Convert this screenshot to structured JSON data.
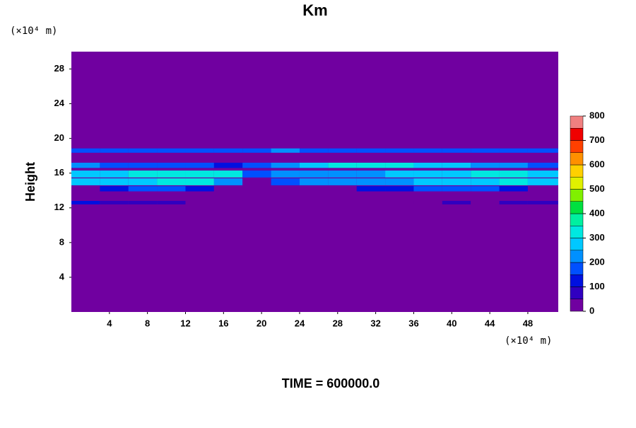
{
  "chart_data": {
    "type": "heatmap",
    "title": "Km",
    "x_unit": "(×10⁴ m)",
    "y_unit": "(×10⁴ m)",
    "y_label": "Height",
    "footer": "TIME = 600000.0",
    "xlim": [
      0,
      51.2
    ],
    "ylim": [
      0,
      30
    ],
    "xticks": [
      4,
      8,
      12,
      16,
      20,
      24,
      28,
      32,
      36,
      40,
      44,
      48
    ],
    "yticks": [
      4,
      8,
      12,
      16,
      20,
      24,
      28
    ],
    "background_value": 0,
    "x_edges": [
      0,
      3,
      6,
      9,
      12,
      15,
      18,
      21,
      24,
      27,
      30,
      33,
      36,
      39,
      42,
      45,
      48,
      51.2
    ],
    "rows": [
      {
        "y": [
          12.4,
          12.8
        ],
        "values": [
          100,
          80,
          80,
          60,
          0,
          0,
          0,
          0,
          0,
          0,
          0,
          0,
          0,
          60,
          0,
          50,
          80
        ]
      },
      {
        "y": [
          13.9,
          14.5
        ],
        "values": [
          0,
          120,
          150,
          150,
          120,
          0,
          0,
          0,
          0,
          0,
          100,
          120,
          150,
          150,
          150,
          100,
          0
        ]
      },
      {
        "y": [
          14.6,
          15.4
        ],
        "values": [
          250,
          260,
          280,
          300,
          320,
          200,
          0,
          150,
          200,
          220,
          200,
          220,
          260,
          280,
          280,
          300,
          250
        ]
      },
      {
        "y": [
          15.5,
          16.3
        ],
        "values": [
          280,
          260,
          300,
          320,
          320,
          300,
          150,
          200,
          220,
          220,
          230,
          250,
          280,
          280,
          300,
          300,
          260
        ]
      },
      {
        "y": [
          16.6,
          17.2
        ],
        "values": [
          200,
          180,
          150,
          150,
          150,
          100,
          150,
          220,
          280,
          300,
          300,
          300,
          280,
          250,
          220,
          200,
          180
        ]
      },
      {
        "y": [
          18.35,
          18.85
        ],
        "values": [
          180,
          160,
          160,
          160,
          160,
          170,
          180,
          200,
          190,
          180,
          170,
          160,
          160,
          160,
          160,
          160,
          160
        ]
      }
    ],
    "levels": [
      0,
      50,
      100,
      150,
      200,
      250,
      300,
      350,
      400,
      450,
      500,
      550,
      600,
      650,
      700,
      750,
      800
    ],
    "level_colors": [
      "#7000a0",
      "#3000c0",
      "#0010e0",
      "#0050ff",
      "#0090ff",
      "#00c8ff",
      "#00e8e0",
      "#00f0a0",
      "#00e040",
      "#80f000",
      "#e0f000",
      "#ffd000",
      "#ff9000",
      "#ff4000",
      "#f00000",
      "#f08080"
    ],
    "cbar_ticks": [
      0,
      100,
      200,
      300,
      400,
      500,
      600,
      700,
      800
    ]
  }
}
